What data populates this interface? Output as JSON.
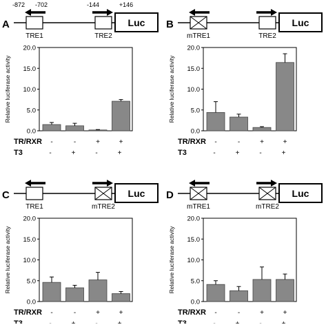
{
  "y_axis_label": "Relative luciferase activity",
  "row_labels": [
    "TR/RXR",
    "T3"
  ],
  "reporter_label": "Luc",
  "colors": {
    "bar": "#888888",
    "axis": "#000000",
    "text": "#000000"
  },
  "panels": [
    {
      "letter": "A",
      "positions": [
        "-872",
        "-702",
        "-144",
        "+146"
      ],
      "elements": [
        {
          "label": "TRE1",
          "mutant": false,
          "arrow": "left"
        },
        {
          "label": "TRE2",
          "mutant": false,
          "arrow": "right"
        }
      ],
      "signs": {
        "tr_rxr": [
          "-",
          "-",
          "+",
          "+"
        ],
        "t3": [
          "-",
          "+",
          "-",
          "+"
        ]
      }
    },
    {
      "letter": "B",
      "positions": [],
      "elements": [
        {
          "label": "mTRE1",
          "mutant": true,
          "arrow": "left"
        },
        {
          "label": "TRE2",
          "mutant": false,
          "arrow": "right"
        }
      ],
      "signs": {
        "tr_rxr": [
          "-",
          "-",
          "+",
          "+"
        ],
        "t3": [
          "-",
          "+",
          "-",
          "+"
        ]
      }
    },
    {
      "letter": "C",
      "positions": [],
      "elements": [
        {
          "label": "TRE1",
          "mutant": false,
          "arrow": "left"
        },
        {
          "label": "mTRE2",
          "mutant": true,
          "arrow": "right"
        }
      ],
      "signs": {
        "tr_rxr": [
          "-",
          "-",
          "+",
          "+"
        ],
        "t3": [
          "-",
          "+",
          "-",
          "+"
        ]
      }
    },
    {
      "letter": "D",
      "positions": [],
      "elements": [
        {
          "label": "mTRE1",
          "mutant": true,
          "arrow": "left"
        },
        {
          "label": "mTRE2",
          "mutant": true,
          "arrow": "right"
        }
      ],
      "signs": {
        "tr_rxr": [
          "-",
          "-",
          "+",
          "+"
        ],
        "t3": [
          "-",
          "+",
          "-",
          "+"
        ]
      }
    }
  ],
  "chart_data": [
    {
      "type": "bar",
      "panel": "A",
      "ylabel": "Relative luciferase activity",
      "ylim": [
        0,
        20
      ],
      "yticks": [
        "0.0",
        "5.0",
        "10.0",
        "15.0",
        "20.0"
      ],
      "categories": [
        "-/-",
        "-/+",
        "+/-",
        "+/+"
      ],
      "values": [
        1.5,
        1.2,
        0.2,
        7.1
      ],
      "errors": [
        0.5,
        0.6,
        0.1,
        0.4
      ],
      "grid": false
    },
    {
      "type": "bar",
      "panel": "B",
      "ylabel": "Relative luciferase activity",
      "ylim": [
        0,
        20
      ],
      "yticks": [
        "0.0",
        "5.0",
        "10.0",
        "15.0",
        "20.0"
      ],
      "categories": [
        "-/-",
        "-/+",
        "+/-",
        "+/+"
      ],
      "values": [
        4.4,
        3.3,
        0.8,
        16.4
      ],
      "errors": [
        2.6,
        0.7,
        0.2,
        2.1
      ],
      "grid": false
    },
    {
      "type": "bar",
      "panel": "C",
      "ylabel": "Relative luciferase activity",
      "ylim": [
        0,
        20
      ],
      "yticks": [
        "0.0",
        "5.0",
        "10.0",
        "15.0",
        "20.0"
      ],
      "categories": [
        "-/-",
        "-/+",
        "+/-",
        "+/+"
      ],
      "values": [
        4.6,
        3.3,
        5.2,
        1.9
      ],
      "errors": [
        1.3,
        0.6,
        1.8,
        0.5
      ],
      "grid": false
    },
    {
      "type": "bar",
      "panel": "D",
      "ylabel": "Relative luciferase activity",
      "ylim": [
        0,
        20
      ],
      "yticks": [
        "0.0",
        "5.0",
        "10.0",
        "15.0",
        "20.0"
      ],
      "categories": [
        "-/-",
        "-/+",
        "+/-",
        "+/+"
      ],
      "values": [
        4.1,
        2.6,
        5.3,
        5.3
      ],
      "errors": [
        0.9,
        1.0,
        3.0,
        1.3
      ],
      "grid": false
    }
  ]
}
